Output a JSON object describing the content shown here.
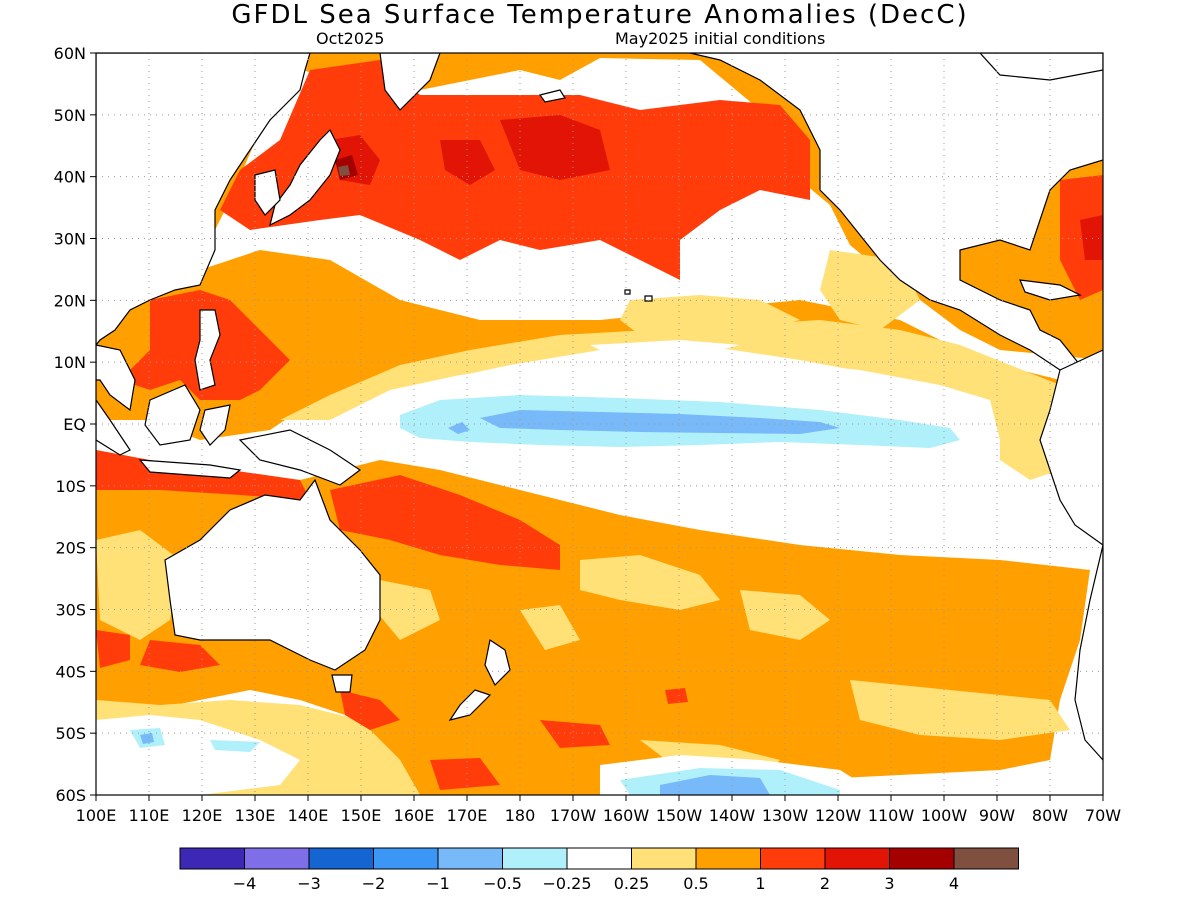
{
  "title": "GFDL Sea Surface Temperature Anomalies (DecC)",
  "subtitle_left": "Oct2025",
  "subtitle_right": "May2025 initial conditions",
  "map": {
    "lon_range": [
      100,
      290
    ],
    "lat_range": [
      -60,
      60
    ],
    "lat_ticks": [
      {
        "value": 60,
        "label": "60N"
      },
      {
        "value": 50,
        "label": "50N"
      },
      {
        "value": 40,
        "label": "40N"
      },
      {
        "value": 30,
        "label": "30N"
      },
      {
        "value": 20,
        "label": "20N"
      },
      {
        "value": 10,
        "label": "10N"
      },
      {
        "value": 0,
        "label": "EQ"
      },
      {
        "value": -10,
        "label": "10S"
      },
      {
        "value": -20,
        "label": "20S"
      },
      {
        "value": -30,
        "label": "30S"
      },
      {
        "value": -40,
        "label": "40S"
      },
      {
        "value": -50,
        "label": "50S"
      },
      {
        "value": -60,
        "label": "60S"
      }
    ],
    "lon_ticks": [
      {
        "value": 100,
        "label": "100E"
      },
      {
        "value": 110,
        "label": "110E"
      },
      {
        "value": 120,
        "label": "120E"
      },
      {
        "value": 130,
        "label": "130E"
      },
      {
        "value": 140,
        "label": "140E"
      },
      {
        "value": 150,
        "label": "150E"
      },
      {
        "value": 160,
        "label": "160E"
      },
      {
        "value": 170,
        "label": "170E"
      },
      {
        "value": 180,
        "label": "180"
      },
      {
        "value": 190,
        "label": "170W"
      },
      {
        "value": 200,
        "label": "160W"
      },
      {
        "value": 210,
        "label": "150W"
      },
      {
        "value": 220,
        "label": "140W"
      },
      {
        "value": 230,
        "label": "130W"
      },
      {
        "value": 240,
        "label": "120W"
      },
      {
        "value": 250,
        "label": "110W"
      },
      {
        "value": 260,
        "label": "100W"
      },
      {
        "value": 270,
        "label": "90W"
      },
      {
        "value": 280,
        "label": "80W"
      },
      {
        "value": 290,
        "label": "70W"
      }
    ],
    "grid": "dotted"
  },
  "colorbar": {
    "colors": [
      "#3d28b6",
      "#7e6ee8",
      "#1464d2",
      "#3c96f5",
      "#78b9fa",
      "#aff0fa",
      "#ffffff",
      "#ffe178",
      "#ffa000",
      "#ff3c0a",
      "#e11405",
      "#a50000",
      "#7f4f3f"
    ],
    "labels": [
      "−4",
      "−3",
      "−2",
      "−1",
      "−0.5",
      "−0.25",
      "0.25",
      "0.5",
      "1",
      "2",
      "3",
      "4"
    ]
  }
}
